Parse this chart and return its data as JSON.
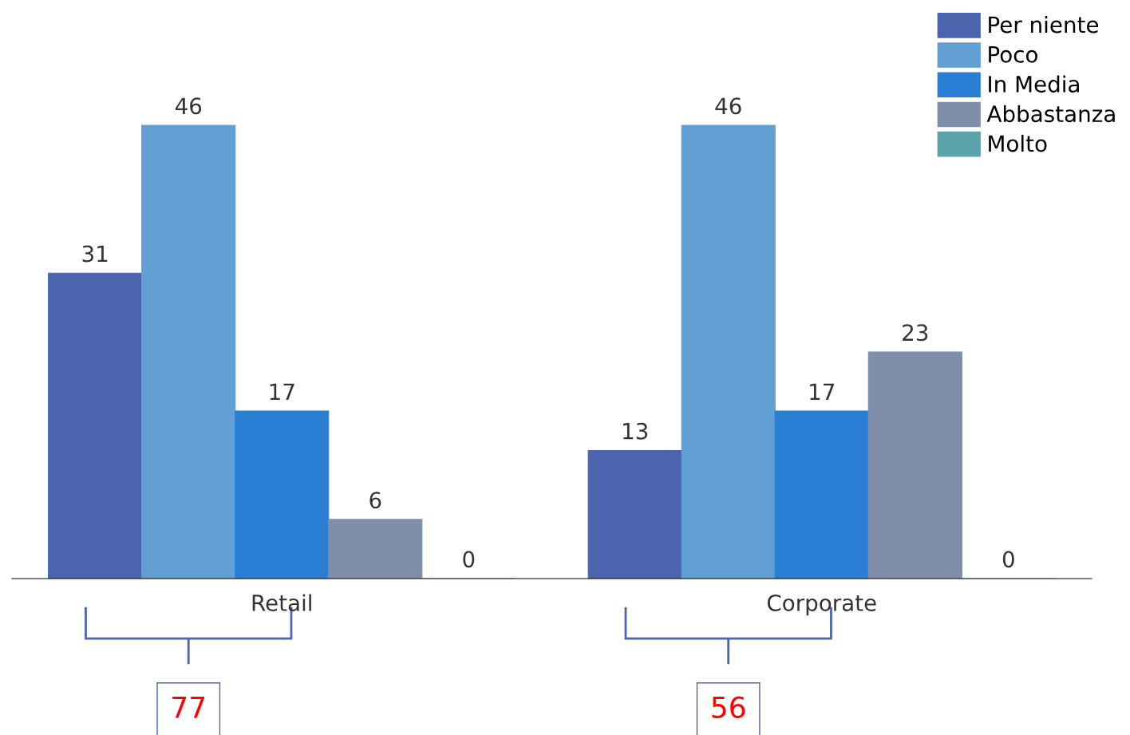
{
  "chart_data": {
    "type": "bar",
    "categories": [
      "Retail",
      "Corporate"
    ],
    "series": [
      {
        "name": "Per niente",
        "color": "#4a65ad",
        "values": [
          31,
          13
        ]
      },
      {
        "name": "Poco",
        "color": "#629fd3",
        "values": [
          46,
          46
        ]
      },
      {
        "name": "In Media",
        "color": "#2a7fd5",
        "values": [
          17,
          17
        ]
      },
      {
        "name": "Abbastanza",
        "color": "#7f8fa9",
        "values": [
          6,
          23
        ]
      },
      {
        "name": "Molto",
        "color": "#5aa3ab",
        "values": [
          0,
          0
        ]
      }
    ],
    "data_labels": true,
    "legend": "top right",
    "grid": false,
    "annotations": [
      "77",
      "56"
    ]
  }
}
